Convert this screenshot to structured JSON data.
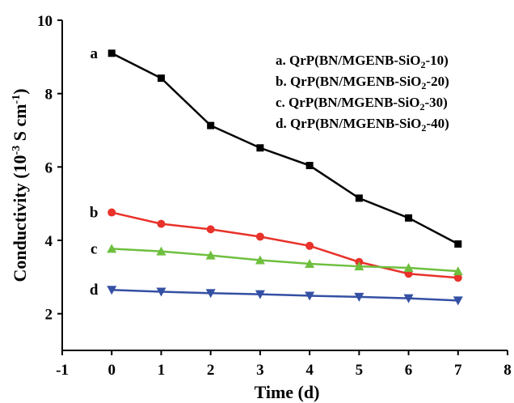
{
  "chart_data": {
    "type": "line",
    "xlabel": "Time (d)",
    "ylabel_main": "Conductivity (10",
    "ylabel_exp": "-3",
    "ylabel_tail": " S cm",
    "ylabel_exp2": "-1",
    "ylabel_end": ")",
    "xlim": [
      -1,
      8
    ],
    "ylim": [
      1,
      10
    ],
    "xticks": [
      "-1",
      "0",
      "1",
      "2",
      "3",
      "4",
      "5",
      "6",
      "7",
      "8"
    ],
    "yticks": [
      "2",
      "4",
      "6",
      "8",
      "10"
    ],
    "grid": false,
    "legend_position": "top-right",
    "x": [
      0,
      1,
      2,
      3,
      4,
      5,
      6,
      7
    ],
    "series": [
      {
        "label": "a",
        "legend_prefix": "a. QrP(BN/MGENB-SiO",
        "legend_sub": "2",
        "legend_suffix": "-10)",
        "marker": "square",
        "color": "#000000",
        "values": [
          9.1,
          8.42,
          7.13,
          6.52,
          6.04,
          5.15,
          4.61,
          3.9
        ]
      },
      {
        "label": "b",
        "legend_prefix": "b. QrP(BN/MGENB-SiO",
        "legend_sub": "2",
        "legend_suffix": "-20)",
        "marker": "circle",
        "color": "#e8322a",
        "values": [
          4.76,
          4.45,
          4.3,
          4.1,
          3.85,
          3.41,
          3.09,
          2.98
        ]
      },
      {
        "label": "c",
        "legend_prefix": "c. QrP(BN/MGENB-SiO",
        "legend_sub": "2",
        "legend_suffix": "-30)",
        "marker": "triangle-up",
        "color": "#6fbf3f",
        "values": [
          3.77,
          3.7,
          3.59,
          3.46,
          3.36,
          3.29,
          3.25,
          3.16
        ]
      },
      {
        "label": "d",
        "legend_prefix": "d. QrP(BN/MGENB-SiO",
        "legend_sub": "2",
        "legend_suffix": "-40)",
        "marker": "triangle-down",
        "color": "#3450a4",
        "values": [
          2.65,
          2.6,
          2.56,
          2.53,
          2.49,
          2.46,
          2.42,
          2.36
        ]
      }
    ]
  }
}
